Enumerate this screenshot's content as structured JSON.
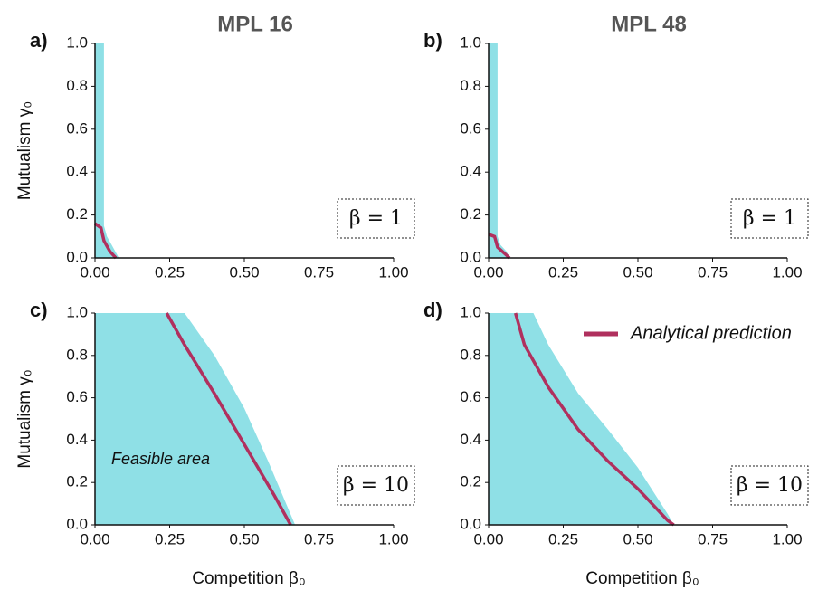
{
  "chart_data": [
    {
      "type": "area",
      "panel_label": "a)",
      "title": "MPL 16",
      "y_label": "Mutualism γ₀",
      "annotation": "β = 1",
      "xlim": [
        0,
        1
      ],
      "ylim": [
        0,
        1
      ],
      "xticks": [
        {
          "value": 0,
          "label": "0.00"
        },
        0.25,
        {
          "value": 0.5,
          "label": "0.50"
        },
        0.75,
        {
          "value": 1,
          "label": "1.00"
        }
      ],
      "yticks": [
        {
          "value": 0,
          "label": "0.0"
        },
        0.2,
        0.4,
        0.6,
        0.8,
        {
          "value": 1,
          "label": "1.0"
        }
      ],
      "series": [
        {
          "style": "area",
          "color": "#8fe0e6",
          "x": [
            0.03,
            0.03,
            0.04,
            0.06,
            0.08
          ],
          "y": [
            1.0,
            0.15,
            0.1,
            0.05,
            0.0
          ]
        },
        {
          "style": "line",
          "color": "#b0305e",
          "x": [
            0,
            0.02,
            0.03,
            0.05,
            0.07
          ],
          "y": [
            0.16,
            0.14,
            0.08,
            0.03,
            0.0
          ]
        }
      ]
    },
    {
      "type": "area",
      "panel_label": "b)",
      "title": "MPL 48",
      "annotation": "β = 1",
      "xlim": [
        0,
        1
      ],
      "ylim": [
        0,
        1
      ],
      "xticks": [
        {
          "value": 0,
          "label": "0.00"
        },
        0.25,
        {
          "value": 0.5,
          "label": "0.50"
        },
        0.75,
        {
          "value": 1,
          "label": "1.00"
        }
      ],
      "yticks": [
        {
          "value": 0,
          "label": "0.0"
        },
        0.2,
        0.4,
        0.6,
        0.8,
        {
          "value": 1,
          "label": "1.0"
        }
      ],
      "series": [
        {
          "style": "area",
          "color": "#8fe0e6",
          "x": [
            0.03,
            0.03,
            0.04,
            0.06,
            0.07
          ],
          "y": [
            1.0,
            0.1,
            0.06,
            0.03,
            0.0
          ]
        },
        {
          "style": "line",
          "color": "#b0305e",
          "x": [
            0,
            0.02,
            0.03,
            0.07
          ],
          "y": [
            0.11,
            0.1,
            0.05,
            0.0
          ]
        }
      ]
    },
    {
      "type": "area",
      "panel_label": "c)",
      "y_label": "Mutualism γ₀",
      "x_label": "Competition β₀",
      "annotation": "β = 10",
      "xlim": [
        0,
        1
      ],
      "ylim": [
        0,
        1
      ],
      "xticks": [
        {
          "value": 0,
          "label": "0.00"
        },
        0.25,
        {
          "value": 0.5,
          "label": "0.50"
        },
        0.75,
        {
          "value": 1,
          "label": "1.00"
        }
      ],
      "yticks": [
        {
          "value": 0,
          "label": "0.0"
        },
        0.2,
        0.4,
        0.6,
        0.8,
        {
          "value": 1,
          "label": "1.0"
        }
      ],
      "series": [
        {
          "style": "area",
          "name": "Feasible area",
          "color": "#8fe0e6",
          "x": [
            0.3,
            0.4,
            0.5,
            0.58,
            0.64,
            0.67
          ],
          "y": [
            1.0,
            0.8,
            0.55,
            0.3,
            0.1,
            0.0
          ]
        },
        {
          "style": "line",
          "color": "#b0305e",
          "x": [
            0.24,
            0.3,
            0.4,
            0.5,
            0.6,
            0.655
          ],
          "y": [
            1.0,
            0.85,
            0.62,
            0.38,
            0.14,
            0.0
          ]
        }
      ]
    },
    {
      "type": "area",
      "panel_label": "d)",
      "x_label": "Competition β₀",
      "annotation": "β = 10",
      "legend": "top-right",
      "xlim": [
        0,
        1
      ],
      "ylim": [
        0,
        1
      ],
      "xticks": [
        {
          "value": 0,
          "label": "0.00"
        },
        0.25,
        {
          "value": 0.5,
          "label": "0.50"
        },
        0.75,
        {
          "value": 1,
          "label": "1.00"
        }
      ],
      "yticks": [
        {
          "value": 0,
          "label": "0.0"
        },
        0.2,
        0.4,
        0.6,
        0.8,
        {
          "value": 1,
          "label": "1.0"
        }
      ],
      "series": [
        {
          "style": "area",
          "color": "#8fe0e6",
          "x": [
            0.15,
            0.2,
            0.3,
            0.4,
            0.5,
            0.6,
            0.62
          ],
          "y": [
            1.0,
            0.85,
            0.62,
            0.45,
            0.27,
            0.05,
            0.0
          ]
        },
        {
          "style": "line",
          "name": "Analytical prediction",
          "color": "#b0305e",
          "x": [
            0.09,
            0.12,
            0.2,
            0.3,
            0.4,
            0.5,
            0.6,
            0.62
          ],
          "y": [
            1.0,
            0.85,
            0.65,
            0.45,
            0.3,
            0.17,
            0.02,
            0.0
          ]
        }
      ]
    }
  ]
}
